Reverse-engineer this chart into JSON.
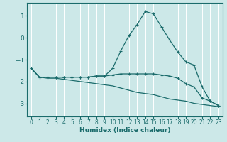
{
  "xlabel": "Humidex (Indice chaleur)",
  "background_color": "#cce8e8",
  "grid_color": "#ffffff",
  "line_color": "#1a6b6b",
  "xlim": [
    -0.5,
    23.5
  ],
  "ylim": [
    -3.6,
    1.6
  ],
  "yticks": [
    1,
    0,
    -1,
    -2,
    -3
  ],
  "xticks": [
    0,
    1,
    2,
    3,
    4,
    5,
    6,
    7,
    8,
    9,
    10,
    11,
    12,
    13,
    14,
    15,
    16,
    17,
    18,
    19,
    20,
    21,
    22,
    23
  ],
  "curve1_x": [
    0,
    1,
    2,
    3,
    4,
    5,
    6,
    7,
    8,
    9,
    10,
    11,
    12,
    13,
    14,
    15,
    16,
    17,
    18,
    19,
    20,
    21,
    22,
    23
  ],
  "curve1_y": [
    -1.4,
    -1.8,
    -1.8,
    -1.8,
    -1.8,
    -1.8,
    -1.8,
    -1.8,
    -1.75,
    -1.75,
    -1.4,
    -0.6,
    0.1,
    0.6,
    1.2,
    1.1,
    0.5,
    -0.1,
    -0.65,
    -1.1,
    -1.25,
    -2.25,
    -2.9,
    -3.1
  ],
  "curve2_x": [
    0,
    1,
    2,
    3,
    4,
    5,
    6,
    7,
    8,
    9,
    10,
    11,
    12,
    13,
    14,
    15,
    16,
    17,
    18,
    19,
    20,
    21,
    22,
    23
  ],
  "curve2_y": [
    -1.4,
    -1.8,
    -1.8,
    -1.8,
    -1.8,
    -1.8,
    -1.8,
    -1.8,
    -1.75,
    -1.75,
    -1.7,
    -1.65,
    -1.65,
    -1.65,
    -1.65,
    -1.65,
    -1.7,
    -1.75,
    -1.85,
    -2.1,
    -2.25,
    -2.75,
    -2.9,
    -3.1
  ],
  "curve3_x": [
    0,
    1,
    2,
    3,
    4,
    5,
    6,
    7,
    8,
    9,
    10,
    11,
    12,
    13,
    14,
    15,
    16,
    17,
    18,
    19,
    20,
    21,
    22,
    23
  ],
  "curve3_y": [
    -1.4,
    -1.8,
    -1.85,
    -1.85,
    -1.9,
    -1.95,
    -2.0,
    -2.05,
    -2.1,
    -2.15,
    -2.2,
    -2.3,
    -2.4,
    -2.5,
    -2.55,
    -2.6,
    -2.7,
    -2.8,
    -2.85,
    -2.9,
    -3.0,
    -3.05,
    -3.1,
    -3.15
  ]
}
